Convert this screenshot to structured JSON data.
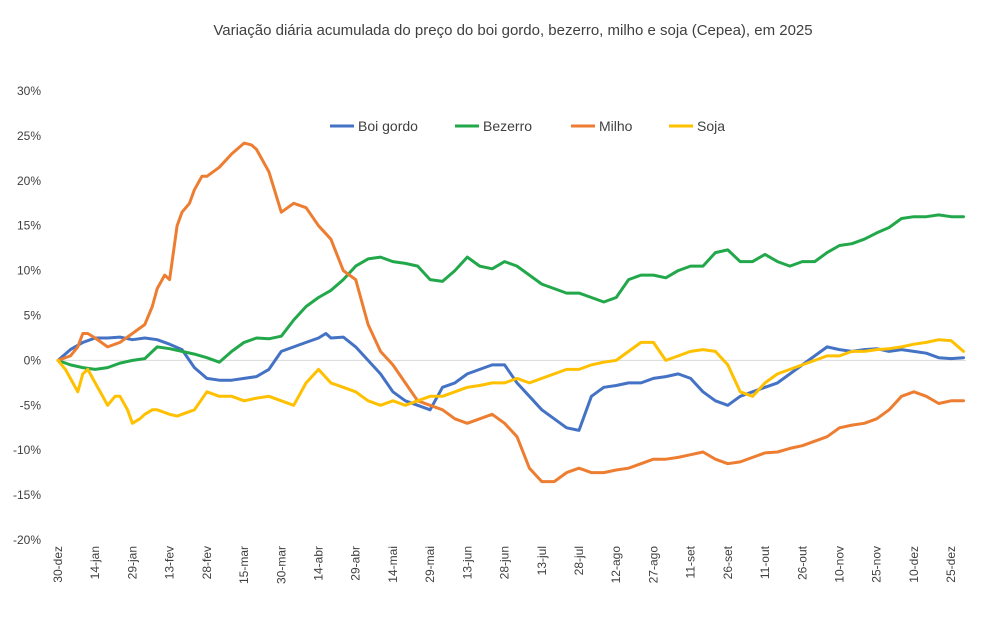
{
  "chart_data": {
    "type": "line",
    "title": "Variação diária acumulada do preço do boi gordo, bezerro, milho e soja (Cepea), em 2025",
    "xlabel": "",
    "ylabel": "",
    "ylim": [
      -20,
      30
    ],
    "y_ticks": [
      "30%",
      "25%",
      "20%",
      "15%",
      "10%",
      "5%",
      "0%",
      "-5%",
      "-10%",
      "-15%",
      "-20%"
    ],
    "y_tick_values": [
      30,
      25,
      20,
      15,
      10,
      5,
      0,
      -5,
      -10,
      -15,
      -20
    ],
    "x_tick_labels": [
      "30-dez",
      "14-jan",
      "29-jan",
      "13-fev",
      "28-fev",
      "15-mar",
      "30-mar",
      "14-abr",
      "29-abr",
      "14-mai",
      "29-mai",
      "13-jun",
      "28-jun",
      "13-jul",
      "28-jul",
      "12-ago",
      "27-ago",
      "11-set",
      "26-set",
      "11-out",
      "26-out",
      "10-nov",
      "25-nov",
      "10-dez",
      "25-dez"
    ],
    "x_tick_days": [
      0,
      15,
      30,
      45,
      60,
      75,
      90,
      105,
      120,
      135,
      150,
      165,
      180,
      195,
      210,
      225,
      240,
      255,
      270,
      285,
      300,
      315,
      330,
      345,
      360
    ],
    "x_range_days": [
      0,
      366
    ],
    "grid": false,
    "legend_position": "top",
    "series": [
      {
        "name": "Boi gordo",
        "color": "#4472C4",
        "x": [
          0,
          5,
          10,
          15,
          20,
          25,
          30,
          35,
          40,
          45,
          50,
          55,
          60,
          65,
          70,
          75,
          80,
          85,
          90,
          95,
          100,
          105,
          108,
          110,
          115,
          120,
          125,
          130,
          135,
          140,
          145,
          150,
          155,
          160,
          165,
          170,
          175,
          180,
          185,
          190,
          195,
          200,
          205,
          210,
          215,
          220,
          225,
          230,
          235,
          240,
          245,
          250,
          255,
          260,
          265,
          270,
          275,
          280,
          285,
          290,
          295,
          300,
          305,
          310,
          315,
          320,
          325,
          330,
          335,
          340,
          345,
          350,
          355,
          360,
          365
        ],
        "values": [
          0,
          1.2,
          2.0,
          2.5,
          2.5,
          2.6,
          2.3,
          2.5,
          2.3,
          1.8,
          1.2,
          -0.8,
          -2.0,
          -2.2,
          -2.2,
          -2.0,
          -1.8,
          -1.0,
          1.0,
          1.5,
          2.0,
          2.5,
          3.0,
          2.5,
          2.6,
          1.5,
          0,
          -1.5,
          -3.5,
          -4.5,
          -5.0,
          -5.5,
          -3.0,
          -2.5,
          -1.5,
          -1.0,
          -0.5,
          -0.5,
          -2.5,
          -4.0,
          -5.5,
          -6.5,
          -7.5,
          -7.8,
          -4.0,
          -3.0,
          -2.8,
          -2.5,
          -2.5,
          -2.0,
          -1.8,
          -1.5,
          -2.0,
          -3.5,
          -4.5,
          -5.0,
          -4.0,
          -3.5,
          -3.0,
          -2.5,
          -1.5,
          -0.5,
          0.5,
          1.5,
          1.2,
          1.0,
          1.2,
          1.3,
          1.0,
          1.2,
          1.0,
          0.8,
          0.3,
          0.2,
          0.3
        ]
      },
      {
        "name": "Bezerro",
        "color": "#22A84A",
        "x": [
          0,
          5,
          10,
          15,
          20,
          25,
          30,
          35,
          40,
          45,
          50,
          55,
          60,
          65,
          70,
          75,
          80,
          85,
          90,
          95,
          100,
          105,
          110,
          115,
          120,
          125,
          130,
          135,
          140,
          145,
          150,
          155,
          160,
          165,
          170,
          175,
          180,
          185,
          190,
          195,
          200,
          205,
          210,
          215,
          220,
          225,
          230,
          235,
          240,
          245,
          250,
          255,
          260,
          265,
          270,
          275,
          280,
          285,
          290,
          295,
          300,
          305,
          310,
          315,
          320,
          325,
          330,
          335,
          340,
          345,
          350,
          355,
          360,
          365
        ],
        "values": [
          0,
          -0.5,
          -0.8,
          -1.0,
          -0.8,
          -0.3,
          0,
          0.2,
          1.5,
          1.3,
          1.0,
          0.7,
          0.3,
          -0.2,
          1.0,
          2.0,
          2.5,
          2.4,
          2.7,
          4.5,
          6.0,
          7.0,
          7.8,
          9.0,
          10.5,
          11.3,
          11.5,
          11.0,
          10.8,
          10.5,
          9.0,
          8.8,
          10.0,
          11.5,
          10.5,
          10.2,
          11.0,
          10.5,
          9.5,
          8.5,
          8.0,
          7.5,
          7.5,
          7.0,
          6.5,
          7.0,
          9.0,
          9.5,
          9.5,
          9.2,
          10.0,
          10.5,
          10.5,
          12.0,
          12.3,
          11.0,
          11.0,
          11.8,
          11.0,
          10.5,
          11.0,
          11.0,
          12.0,
          12.8,
          13.0,
          13.5,
          14.2,
          14.8,
          15.8,
          16.0,
          16.0,
          16.2,
          16.0,
          16.0
        ]
      },
      {
        "name": "Milho",
        "color": "#ED7D31",
        "x": [
          0,
          5,
          8,
          10,
          12,
          15,
          20,
          25,
          30,
          35,
          38,
          40,
          43,
          45,
          48,
          50,
          53,
          55,
          58,
          60,
          65,
          70,
          75,
          78,
          80,
          85,
          90,
          95,
          100,
          105,
          110,
          115,
          120,
          125,
          130,
          135,
          140,
          145,
          150,
          155,
          160,
          165,
          170,
          175,
          180,
          185,
          190,
          195,
          200,
          205,
          210,
          215,
          220,
          225,
          230,
          235,
          240,
          245,
          250,
          255,
          260,
          265,
          270,
          275,
          280,
          285,
          290,
          295,
          300,
          305,
          310,
          315,
          320,
          325,
          330,
          335,
          340,
          345,
          350,
          355,
          360,
          365
        ],
        "values": [
          0,
          0.5,
          1.5,
          3.0,
          3.0,
          2.5,
          1.5,
          2.0,
          3.0,
          4.0,
          6.0,
          8.0,
          9.5,
          9.0,
          15.0,
          16.5,
          17.5,
          19.0,
          20.5,
          20.5,
          21.5,
          23.0,
          24.2,
          24.0,
          23.5,
          21.0,
          16.5,
          17.5,
          17.0,
          15.0,
          13.5,
          10.0,
          9.0,
          4.0,
          1.0,
          -0.5,
          -2.5,
          -4.5,
          -5.0,
          -5.5,
          -6.5,
          -7.0,
          -6.5,
          -6.0,
          -7.0,
          -8.5,
          -12.0,
          -13.5,
          -13.5,
          -12.5,
          -12.0,
          -12.5,
          -12.5,
          -12.2,
          -12.0,
          -11.5,
          -11.0,
          -11.0,
          -10.8,
          -10.5,
          -10.2,
          -11.0,
          -11.5,
          -11.3,
          -10.8,
          -10.3,
          -10.2,
          -9.8,
          -9.5,
          -9.0,
          -8.5,
          -7.5,
          -7.2,
          -7.0,
          -6.5,
          -5.5,
          -4.0,
          -3.5,
          -4.0,
          -4.8,
          -4.5,
          -4.5
        ]
      },
      {
        "name": "Soja",
        "color": "#FFC000",
        "x": [
          0,
          3,
          5,
          8,
          10,
          12,
          15,
          18,
          20,
          23,
          25,
          28,
          30,
          33,
          35,
          38,
          40,
          43,
          45,
          48,
          50,
          55,
          60,
          65,
          70,
          75,
          80,
          85,
          90,
          95,
          100,
          105,
          110,
          115,
          120,
          125,
          130,
          135,
          140,
          145,
          150,
          155,
          160,
          165,
          170,
          175,
          180,
          185,
          190,
          195,
          200,
          205,
          210,
          215,
          220,
          225,
          230,
          235,
          240,
          245,
          250,
          255,
          260,
          265,
          270,
          275,
          280,
          285,
          290,
          295,
          300,
          305,
          310,
          315,
          320,
          325,
          330,
          335,
          340,
          345,
          350,
          355,
          360,
          365
        ],
        "values": [
          0,
          -1.0,
          -2.0,
          -3.5,
          -1.5,
          -1.0,
          -2.5,
          -4.0,
          -5.0,
          -4.0,
          -4.0,
          -5.5,
          -7.0,
          -6.5,
          -6.0,
          -5.5,
          -5.5,
          -5.8,
          -6.0,
          -6.2,
          -6.0,
          -5.5,
          -3.5,
          -4.0,
          -4.0,
          -4.5,
          -4.2,
          -4.0,
          -4.5,
          -5.0,
          -2.5,
          -1.0,
          -2.5,
          -3.0,
          -3.5,
          -4.5,
          -5.0,
          -4.5,
          -5.0,
          -4.5,
          -4.0,
          -4.0,
          -3.5,
          -3.0,
          -2.8,
          -2.5,
          -2.5,
          -2.0,
          -2.5,
          -2.0,
          -1.5,
          -1.0,
          -1.0,
          -0.5,
          -0.2,
          0,
          1.0,
          2.0,
          2.0,
          0,
          0.5,
          1.0,
          1.2,
          1.0,
          -0.5,
          -3.5,
          -4.0,
          -2.5,
          -1.5,
          -1.0,
          -0.5,
          0,
          0.5,
          0.5,
          1.0,
          1.0,
          1.2,
          1.3,
          1.5,
          1.8,
          2.0,
          2.3,
          2.2,
          1.0
        ]
      }
    ]
  }
}
